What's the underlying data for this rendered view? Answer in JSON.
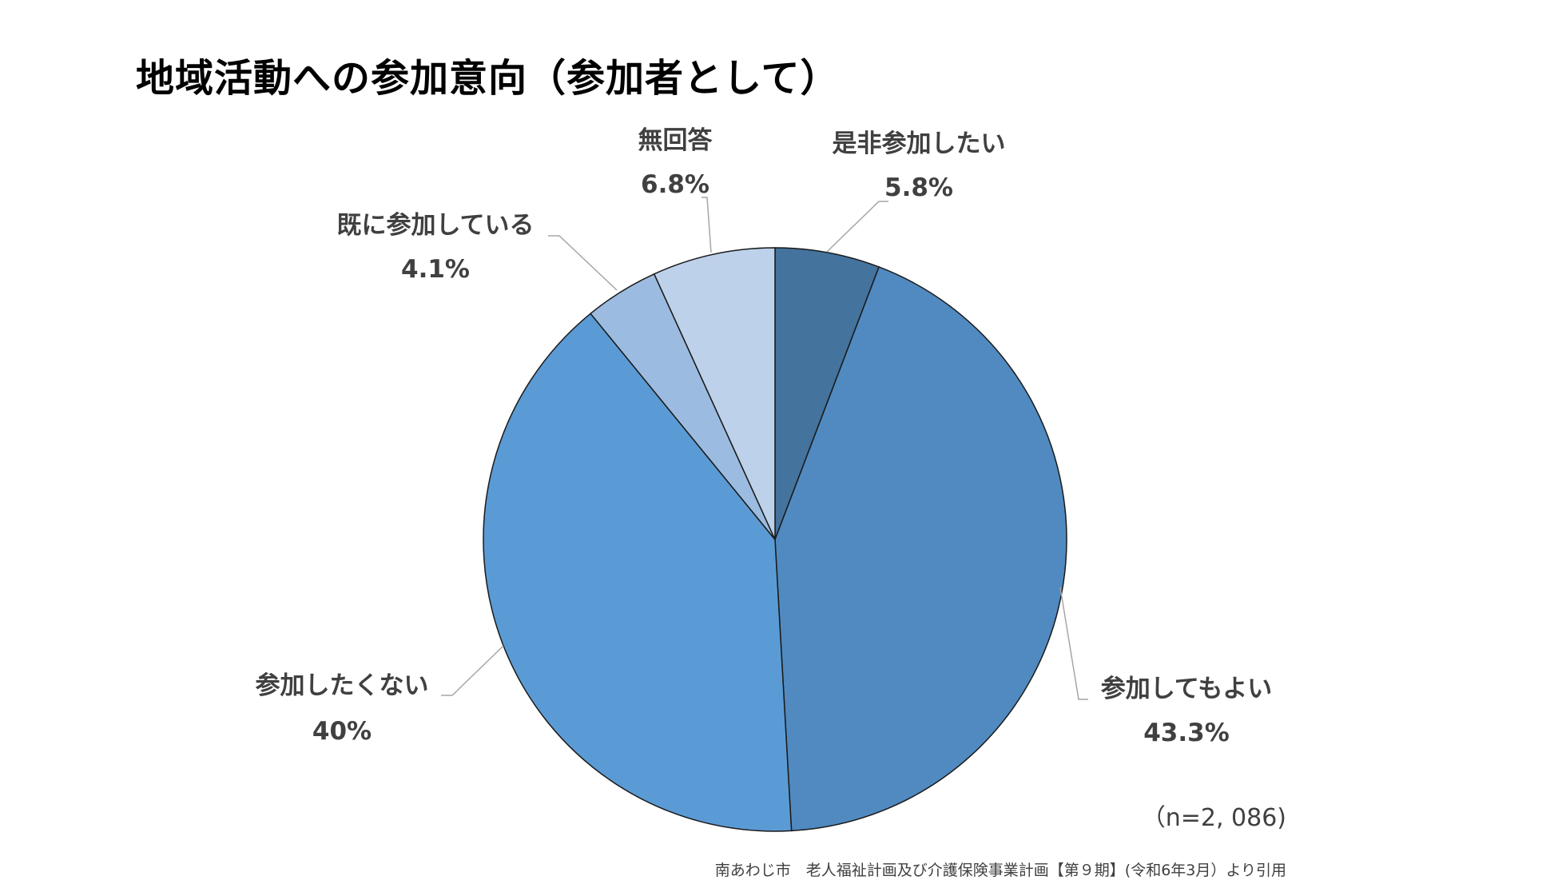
{
  "chart_data": {
    "type": "pie",
    "title": "地域活動への参加意向（参加者として）",
    "slices": [
      {
        "label": "是非参加したい",
        "value": 5.8,
        "display": "5.8%",
        "color": "#44739e"
      },
      {
        "label": "参加してもよい",
        "value": 43.3,
        "display": "43.3%",
        "color": "#508ac0"
      },
      {
        "label": "参加したくない",
        "value": 40,
        "display": "40%",
        "color": "#5b9bd5"
      },
      {
        "label": "既に参加している",
        "value": 4.1,
        "display": "4.1%",
        "color": "#9cbbe0"
      },
      {
        "label": "無回答",
        "value": 6.8,
        "display": "6.8%",
        "color": "#bdd1ea"
      }
    ],
    "start": "12 o'clock",
    "direction": "clockwise"
  },
  "sample_size": "（n=2, 086)",
  "source": "南あわじ市　老人福祉計画及び介護保険事業計画【第９期】(令和6年3月）より引用"
}
